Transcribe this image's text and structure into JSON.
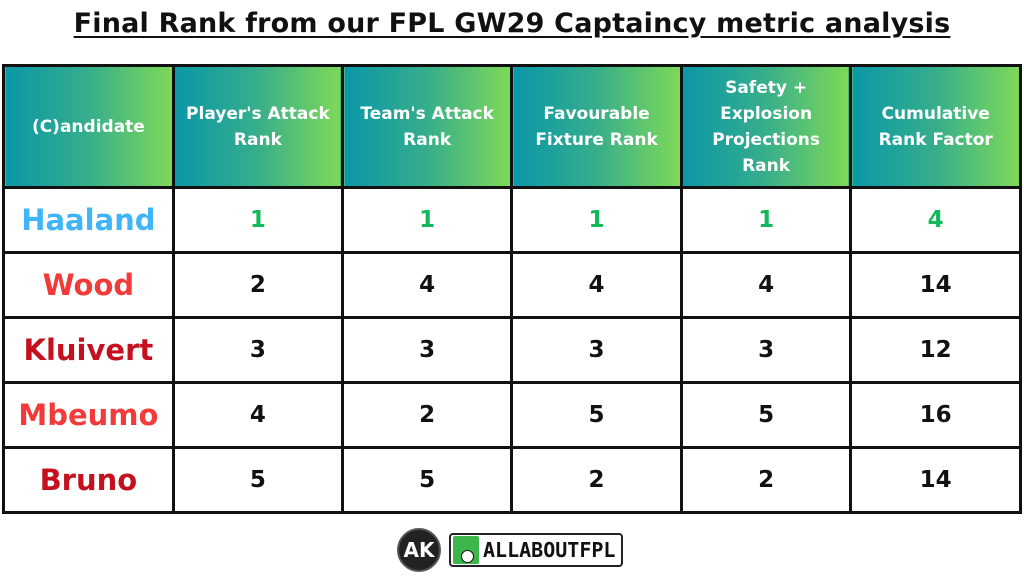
{
  "title": "Final Rank from our FPL GW29 Captaincy metric analysis",
  "headers": [
    "(C)andidate",
    "Player's Attack Rank",
    "Team's Attack Rank",
    "Favourable Fixture Rank",
    "Safety + Explosion Projections Rank",
    "Cumulative Rank Factor"
  ],
  "rows": [
    {
      "name": "Haaland",
      "name_color": "#3fb4f8",
      "value_color": "#12b85a",
      "values": [
        "1",
        "1",
        "1",
        "1",
        "4"
      ]
    },
    {
      "name": "Wood",
      "name_color": "#f23a3a",
      "value_color": "#111111",
      "values": [
        "2",
        "4",
        "4",
        "4",
        "14"
      ]
    },
    {
      "name": "Kluivert",
      "name_color": "#c4101f",
      "value_color": "#111111",
      "values": [
        "3",
        "3",
        "3",
        "3",
        "12"
      ]
    },
    {
      "name": "Mbeumo",
      "name_color": "#f23a3a",
      "value_color": "#111111",
      "values": [
        "4",
        "2",
        "5",
        "5",
        "16"
      ]
    },
    {
      "name": "Bruno",
      "name_color": "#c4101f",
      "value_color": "#111111",
      "values": [
        "5",
        "5",
        "2",
        "2",
        "14"
      ]
    }
  ],
  "footer": {
    "logo_text": "AK",
    "brand": "ALLABOUTFPL"
  }
}
